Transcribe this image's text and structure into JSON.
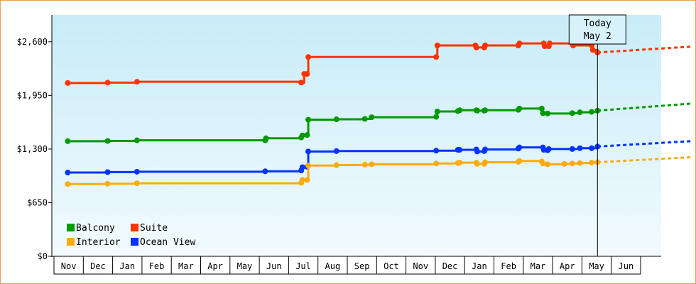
{
  "chart_data": {
    "type": "line",
    "ylim": [
      0,
      2925
    ],
    "y_ticks": [
      {
        "value": 0,
        "label": "$0"
      },
      {
        "value": 650,
        "label": "$650"
      },
      {
        "value": 1300,
        "label": "$1,300"
      },
      {
        "value": 1950,
        "label": "$1,950"
      },
      {
        "value": 2600,
        "label": "$2,600"
      }
    ],
    "x_labels": [
      "Nov",
      "Dec",
      "Jan",
      "Feb",
      "Mar",
      "Apr",
      "May",
      "Jun",
      "Jul",
      "Aug",
      "Sep",
      "Oct",
      "Nov",
      "Dec",
      "Jan",
      "Feb",
      "Mar",
      "Apr",
      "May",
      "Jun"
    ],
    "grid": false,
    "legend_placement": "bottom-left",
    "today_marker": {
      "month_index": 18.03,
      "line1": "Today",
      "line2": "May 2"
    },
    "series": [
      {
        "name": "Suite",
        "color": "#ff3300",
        "points": [
          [
            -0.03,
            2100
          ],
          [
            1.33,
            2105
          ],
          [
            2.33,
            2115
          ],
          [
            7.93,
            2105
          ],
          [
            8.03,
            2210
          ],
          [
            8.13,
            2210
          ],
          [
            8.17,
            2415
          ],
          [
            12.53,
            2415
          ],
          [
            12.57,
            2555
          ],
          [
            13.87,
            2555
          ],
          [
            13.9,
            2530
          ],
          [
            14.17,
            2530
          ],
          [
            14.2,
            2555
          ],
          [
            15.33,
            2555
          ],
          [
            15.37,
            2580
          ],
          [
            16.2,
            2580
          ],
          [
            16.23,
            2545
          ],
          [
            16.37,
            2545
          ],
          [
            16.4,
            2580
          ],
          [
            17.17,
            2580
          ],
          [
            17.2,
            2555
          ],
          [
            17.83,
            2555
          ],
          [
            17.87,
            2500
          ],
          [
            18.03,
            2470
          ]
        ],
        "forecast": [
          [
            18.03,
            2470
          ],
          [
            21.2,
            2540
          ]
        ]
      },
      {
        "name": "Balcony",
        "color": "#009900",
        "points": [
          [
            -0.03,
            1395
          ],
          [
            1.33,
            1398
          ],
          [
            2.33,
            1405
          ],
          [
            6.7,
            1405
          ],
          [
            6.73,
            1430
          ],
          [
            7.93,
            1440
          ],
          [
            7.97,
            1465
          ],
          [
            8.13,
            1470
          ],
          [
            8.17,
            1655
          ],
          [
            9.13,
            1660
          ],
          [
            10.1,
            1665
          ],
          [
            10.33,
            1685
          ],
          [
            12.53,
            1690
          ],
          [
            12.57,
            1755
          ],
          [
            13.27,
            1760
          ],
          [
            13.33,
            1770
          ],
          [
            13.9,
            1770
          ],
          [
            13.93,
            1765
          ],
          [
            14.17,
            1765
          ],
          [
            14.2,
            1770
          ],
          [
            15.33,
            1775
          ],
          [
            15.37,
            1790
          ],
          [
            16.13,
            1790
          ],
          [
            16.17,
            1735
          ],
          [
            16.33,
            1730
          ],
          [
            17.17,
            1735
          ],
          [
            17.43,
            1745
          ],
          [
            17.83,
            1750
          ],
          [
            18.03,
            1765
          ]
        ],
        "forecast": [
          [
            18.03,
            1765
          ],
          [
            21.2,
            1850
          ]
        ]
      },
      {
        "name": "Ocean View",
        "color": "#0033ff",
        "points": [
          [
            -0.03,
            1015
          ],
          [
            1.33,
            1020
          ],
          [
            2.33,
            1025
          ],
          [
            6.7,
            1030
          ],
          [
            7.93,
            1040
          ],
          [
            7.97,
            1080
          ],
          [
            8.13,
            1085
          ],
          [
            8.17,
            1270
          ],
          [
            9.13,
            1275
          ],
          [
            12.53,
            1280
          ],
          [
            13.27,
            1290
          ],
          [
            13.33,
            1290
          ],
          [
            13.9,
            1295
          ],
          [
            13.93,
            1270
          ],
          [
            14.17,
            1275
          ],
          [
            14.2,
            1295
          ],
          [
            15.33,
            1305
          ],
          [
            15.37,
            1320
          ],
          [
            16.17,
            1320
          ],
          [
            16.2,
            1290
          ],
          [
            16.33,
            1285
          ],
          [
            16.37,
            1300
          ],
          [
            17.17,
            1300
          ],
          [
            17.43,
            1310
          ],
          [
            17.83,
            1310
          ],
          [
            18.03,
            1330
          ]
        ],
        "forecast": [
          [
            18.03,
            1330
          ],
          [
            21.2,
            1395
          ]
        ]
      },
      {
        "name": "Interior",
        "color": "#ffaa11",
        "points": [
          [
            -0.03,
            875
          ],
          [
            1.33,
            880
          ],
          [
            2.33,
            885
          ],
          [
            7.93,
            890
          ],
          [
            7.97,
            925
          ],
          [
            8.13,
            925
          ],
          [
            8.17,
            1100
          ],
          [
            9.13,
            1105
          ],
          [
            10.1,
            1110
          ],
          [
            10.33,
            1115
          ],
          [
            12.53,
            1125
          ],
          [
            13.27,
            1130
          ],
          [
            13.33,
            1135
          ],
          [
            13.9,
            1135
          ],
          [
            13.93,
            1120
          ],
          [
            14.17,
            1120
          ],
          [
            14.2,
            1140
          ],
          [
            15.33,
            1145
          ],
          [
            15.37,
            1155
          ],
          [
            16.13,
            1150
          ],
          [
            16.17,
            1125
          ],
          [
            16.33,
            1115
          ],
          [
            16.9,
            1120
          ],
          [
            17.17,
            1125
          ],
          [
            17.43,
            1130
          ],
          [
            17.83,
            1135
          ],
          [
            18.03,
            1140
          ]
        ],
        "forecast": [
          [
            18.03,
            1140
          ],
          [
            21.2,
            1200
          ]
        ]
      }
    ],
    "legend": [
      {
        "name": "Balcony",
        "color": "#009900"
      },
      {
        "name": "Suite",
        "color": "#ff3300"
      },
      {
        "name": "Interior",
        "color": "#ffaa11"
      },
      {
        "name": "Ocean View",
        "color": "#0033ff"
      }
    ]
  }
}
